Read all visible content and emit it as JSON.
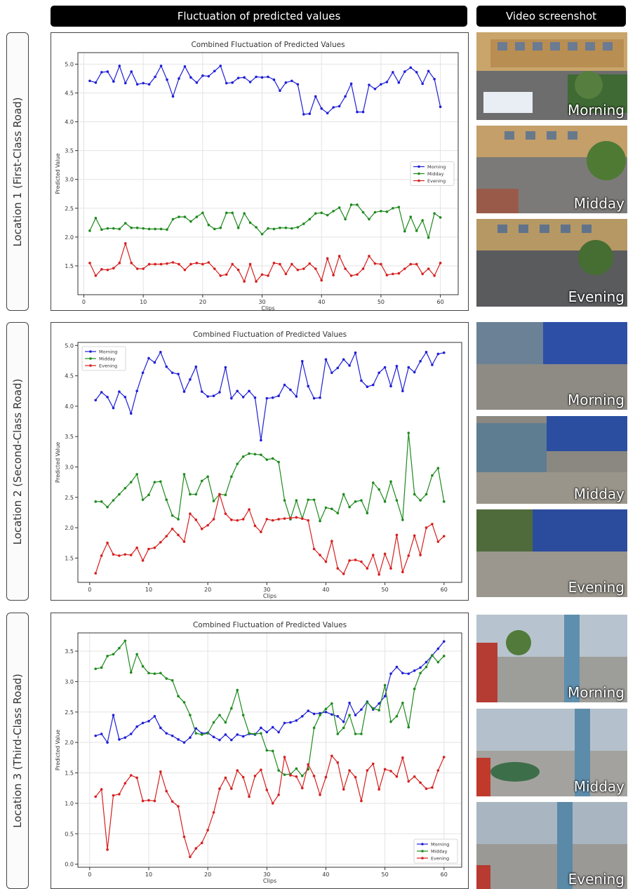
{
  "headers": {
    "left": "Fluctuation of predicted values",
    "right": "Video screenshot"
  },
  "locations": [
    {
      "label": "Location 1 (First-Class Road)"
    },
    {
      "label": "Location 2 (Second-Class Road)"
    },
    {
      "label": "Location 3 (Third-Class Road)"
    }
  ],
  "screenshots": [
    [
      {
        "label": "Morning"
      },
      {
        "label": "Midday"
      },
      {
        "label": "Evening"
      }
    ],
    [
      {
        "label": "Morning"
      },
      {
        "label": "Midday"
      },
      {
        "label": "Evening"
      }
    ],
    [
      {
        "label": "Morning"
      },
      {
        "label": "Midday"
      },
      {
        "label": "Evening"
      }
    ]
  ],
  "chart_data": [
    {
      "type": "line",
      "title": "Combined Fluctuation of Predicted Values",
      "xlabel": "Clips",
      "ylabel": "Predicted Value",
      "xlim": [
        -1,
        63
      ],
      "ylim": [
        1.0,
        5.2
      ],
      "xticks": [
        0,
        10,
        20,
        30,
        40,
        50,
        60
      ],
      "yticks": [
        1.5,
        2.0,
        2.5,
        3.0,
        3.5,
        4.0,
        4.5,
        5.0
      ],
      "grid": true,
      "legend_position": "right-middle",
      "x": [
        1,
        2,
        3,
        4,
        5,
        6,
        7,
        8,
        9,
        10,
        11,
        12,
        13,
        14,
        15,
        16,
        17,
        18,
        19,
        20,
        21,
        22,
        23,
        24,
        25,
        26,
        27,
        28,
        29,
        30,
        31,
        32,
        33,
        34,
        35,
        36,
        37,
        38,
        39,
        40,
        41,
        42,
        43,
        44,
        45,
        46,
        47,
        48,
        49,
        50,
        51,
        52,
        53,
        54,
        55,
        56,
        57,
        58,
        59,
        60
      ],
      "series": [
        {
          "name": "Morning",
          "color": "#1f1fd6",
          "values": [
            4.71,
            4.68,
            4.86,
            4.87,
            4.7,
            4.97,
            4.67,
            4.87,
            4.65,
            4.67,
            4.65,
            4.78,
            4.97,
            4.73,
            4.44,
            4.75,
            4.96,
            4.77,
            4.68,
            4.8,
            4.79,
            4.88,
            4.97,
            4.67,
            4.68,
            4.76,
            4.77,
            4.69,
            4.78,
            4.77,
            4.78,
            4.73,
            4.54,
            4.68,
            4.71,
            4.65,
            4.13,
            4.14,
            4.44,
            4.23,
            4.15,
            4.25,
            4.27,
            4.44,
            4.66,
            4.17,
            4.17,
            4.64,
            4.57,
            4.65,
            4.69,
            4.86,
            4.68,
            4.87,
            4.94,
            4.86,
            4.66,
            4.88,
            4.74,
            4.26
          ]
        },
        {
          "name": "Midday",
          "color": "#1e8a1e",
          "values": [
            2.11,
            2.33,
            2.13,
            2.15,
            2.15,
            2.14,
            2.24,
            2.16,
            2.16,
            2.15,
            2.14,
            2.14,
            2.14,
            2.13,
            2.31,
            2.35,
            2.35,
            2.27,
            2.35,
            2.42,
            2.21,
            2.14,
            2.16,
            2.42,
            2.42,
            2.16,
            2.41,
            2.25,
            2.17,
            2.05,
            2.15,
            2.14,
            2.16,
            2.16,
            2.15,
            2.17,
            2.23,
            2.31,
            2.41,
            2.42,
            2.38,
            2.45,
            2.51,
            2.31,
            2.56,
            2.56,
            2.43,
            2.31,
            2.43,
            2.45,
            2.44,
            2.5,
            2.52,
            2.1,
            2.35,
            2.11,
            2.29,
            1.99,
            2.41,
            2.34
          ]
        },
        {
          "name": "Evening",
          "color": "#d61f1f",
          "values": [
            1.55,
            1.33,
            1.44,
            1.43,
            1.46,
            1.55,
            1.89,
            1.55,
            1.45,
            1.45,
            1.53,
            1.53,
            1.53,
            1.54,
            1.56,
            1.53,
            1.43,
            1.53,
            1.55,
            1.53,
            1.56,
            1.45,
            1.33,
            1.35,
            1.53,
            1.43,
            1.23,
            1.53,
            1.23,
            1.35,
            1.33,
            1.55,
            1.53,
            1.36,
            1.53,
            1.43,
            1.45,
            1.54,
            1.45,
            1.25,
            1.63,
            1.34,
            1.67,
            1.45,
            1.33,
            1.35,
            1.45,
            1.67,
            1.54,
            1.53,
            1.34,
            1.36,
            1.37,
            1.45,
            1.53,
            1.53,
            1.36,
            1.45,
            1.33,
            1.55
          ]
        }
      ]
    },
    {
      "type": "line",
      "title": "Combined Fluctuation of Predicted Values",
      "xlabel": "Clips",
      "ylabel": "Predicted Value",
      "xlim": [
        -2,
        63
      ],
      "ylim": [
        1.1,
        5.05
      ],
      "xticks": [
        0,
        10,
        20,
        30,
        40,
        50,
        60
      ],
      "yticks": [
        1.5,
        2.0,
        2.5,
        3.0,
        3.5,
        4.0,
        4.5,
        5.0
      ],
      "grid": false,
      "legend_position": "top-left",
      "x": [
        1,
        2,
        3,
        4,
        5,
        6,
        7,
        8,
        9,
        10,
        11,
        12,
        13,
        14,
        15,
        16,
        17,
        18,
        19,
        20,
        21,
        22,
        23,
        24,
        25,
        26,
        27,
        28,
        29,
        30,
        31,
        32,
        33,
        34,
        35,
        36,
        37,
        38,
        39,
        40,
        41,
        42,
        43,
        44,
        45,
        46,
        47,
        48,
        49,
        50,
        51,
        52,
        53,
        54,
        55,
        56,
        57,
        58,
        59,
        60
      ],
      "series": [
        {
          "name": "Morning",
          "color": "#1f1fd6",
          "values": [
            4.1,
            4.23,
            4.15,
            3.97,
            4.24,
            4.15,
            3.88,
            4.25,
            4.55,
            4.79,
            4.72,
            4.89,
            4.65,
            4.55,
            4.53,
            4.24,
            4.44,
            4.65,
            4.24,
            4.16,
            4.17,
            4.23,
            4.64,
            4.13,
            4.25,
            4.15,
            4.25,
            4.14,
            3.44,
            4.13,
            4.14,
            4.17,
            4.35,
            4.27,
            4.16,
            4.74,
            4.33,
            4.13,
            4.14,
            4.77,
            4.55,
            4.63,
            4.77,
            4.67,
            4.88,
            4.42,
            4.32,
            4.35,
            4.55,
            4.64,
            4.33,
            4.66,
            4.25,
            4.64,
            4.56,
            4.74,
            4.89,
            4.68,
            4.86,
            4.88
          ]
        },
        {
          "name": "Midday",
          "color": "#1e8a1e",
          "values": [
            2.43,
            2.43,
            2.34,
            2.45,
            2.55,
            2.65,
            2.75,
            2.88,
            2.46,
            2.54,
            2.75,
            2.76,
            2.46,
            2.2,
            2.14,
            2.88,
            2.55,
            2.55,
            2.77,
            2.84,
            2.44,
            2.55,
            2.54,
            2.84,
            3.05,
            3.17,
            3.22,
            3.21,
            3.2,
            3.12,
            3.14,
            3.08,
            2.45,
            2.14,
            2.45,
            2.15,
            2.46,
            2.46,
            2.11,
            2.33,
            2.31,
            2.24,
            2.55,
            2.34,
            2.43,
            2.45,
            2.24,
            2.74,
            2.63,
            2.43,
            2.76,
            2.45,
            2.13,
            3.56,
            2.55,
            2.45,
            2.55,
            2.86,
            2.98,
            2.43
          ]
        },
        {
          "name": "Evening",
          "color": "#d61f1f",
          "values": [
            1.25,
            1.54,
            1.75,
            1.56,
            1.54,
            1.56,
            1.55,
            1.67,
            1.46,
            1.65,
            1.67,
            1.76,
            1.86,
            1.98,
            1.88,
            1.77,
            2.23,
            2.13,
            1.98,
            2.04,
            2.14,
            2.55,
            2.23,
            2.13,
            2.12,
            2.14,
            2.3,
            2.03,
            1.93,
            2.14,
            2.12,
            2.14,
            2.15,
            2.16,
            2.17,
            2.15,
            2.12,
            1.65,
            1.55,
            1.44,
            1.78,
            1.33,
            1.24,
            1.46,
            1.47,
            1.44,
            1.33,
            1.55,
            1.23,
            1.57,
            1.33,
            1.88,
            1.27,
            1.54,
            1.87,
            1.55,
            2.0,
            2.06,
            1.77,
            1.86
          ]
        }
      ]
    },
    {
      "type": "line",
      "title": "Combined Fluctuation of Predicted Values",
      "xlabel": "Clips",
      "ylabel": "Predicted Value",
      "xlim": [
        -2,
        63
      ],
      "ylim": [
        -0.05,
        3.8
      ],
      "xticks": [
        0,
        10,
        20,
        30,
        40,
        50,
        60
      ],
      "yticks": [
        0.0,
        0.5,
        1.0,
        1.5,
        2.0,
        2.5,
        3.0,
        3.5
      ],
      "grid": true,
      "legend_position": "bottom-right",
      "x": [
        1,
        2,
        3,
        4,
        5,
        6,
        7,
        8,
        9,
        10,
        11,
        12,
        13,
        14,
        15,
        16,
        17,
        18,
        19,
        20,
        21,
        22,
        23,
        24,
        25,
        26,
        27,
        28,
        29,
        30,
        31,
        32,
        33,
        34,
        35,
        36,
        37,
        38,
        39,
        40,
        41,
        42,
        43,
        44,
        45,
        46,
        47,
        48,
        49,
        50,
        51,
        52,
        53,
        54,
        55,
        56,
        57,
        58,
        59,
        60
      ],
      "series": [
        {
          "name": "Morning",
          "color": "#1f1fd6",
          "values": [
            2.11,
            2.14,
            2.0,
            2.45,
            2.05,
            2.08,
            2.14,
            2.26,
            2.32,
            2.35,
            2.43,
            2.24,
            2.15,
            2.11,
            2.05,
            2.0,
            2.08,
            2.23,
            2.15,
            2.16,
            2.09,
            2.04,
            2.13,
            2.04,
            2.13,
            2.1,
            2.14,
            2.13,
            2.24,
            2.17,
            2.25,
            2.17,
            2.32,
            2.33,
            2.36,
            2.43,
            2.52,
            2.47,
            2.48,
            2.5,
            2.46,
            2.43,
            2.34,
            2.65,
            2.45,
            2.54,
            2.67,
            2.54,
            2.64,
            2.76,
            3.13,
            3.24,
            3.14,
            3.13,
            3.18,
            3.23,
            3.32,
            3.43,
            3.54,
            3.66
          ]
        },
        {
          "name": "Midday",
          "color": "#1e8a1e",
          "values": [
            3.21,
            3.23,
            3.42,
            3.45,
            3.55,
            3.67,
            3.15,
            3.45,
            3.25,
            3.14,
            3.13,
            3.14,
            3.05,
            3.02,
            2.76,
            2.66,
            2.45,
            2.15,
            2.13,
            2.15,
            2.33,
            2.45,
            2.33,
            2.56,
            2.86,
            2.45,
            2.15,
            2.14,
            2.15,
            1.87,
            1.86,
            1.54,
            1.47,
            1.48,
            1.57,
            1.45,
            1.56,
            2.24,
            2.45,
            2.55,
            2.64,
            2.14,
            2.24,
            2.45,
            2.14,
            2.14,
            2.66,
            2.56,
            2.53,
            2.94,
            2.34,
            2.43,
            2.65,
            2.25,
            2.88,
            3.14,
            3.24,
            3.43,
            3.32,
            3.42
          ]
        },
        {
          "name": "Evening",
          "color": "#d61f1f",
          "values": [
            1.11,
            1.23,
            0.24,
            1.13,
            1.15,
            1.33,
            1.46,
            1.42,
            1.04,
            1.05,
            1.04,
            1.52,
            1.2,
            1.03,
            0.95,
            0.45,
            0.12,
            0.26,
            0.35,
            0.56,
            0.85,
            1.24,
            1.42,
            1.24,
            1.54,
            1.43,
            1.11,
            1.45,
            1.55,
            1.22,
            1.0,
            1.14,
            1.76,
            1.46,
            1.44,
            1.25,
            1.64,
            1.45,
            1.14,
            1.43,
            1.78,
            1.67,
            1.23,
            1.54,
            1.43,
            1.04,
            1.54,
            1.65,
            1.23,
            1.56,
            1.53,
            1.44,
            1.75,
            1.36,
            1.44,
            1.34,
            1.24,
            1.26,
            1.54,
            1.76
          ]
        }
      ]
    }
  ]
}
